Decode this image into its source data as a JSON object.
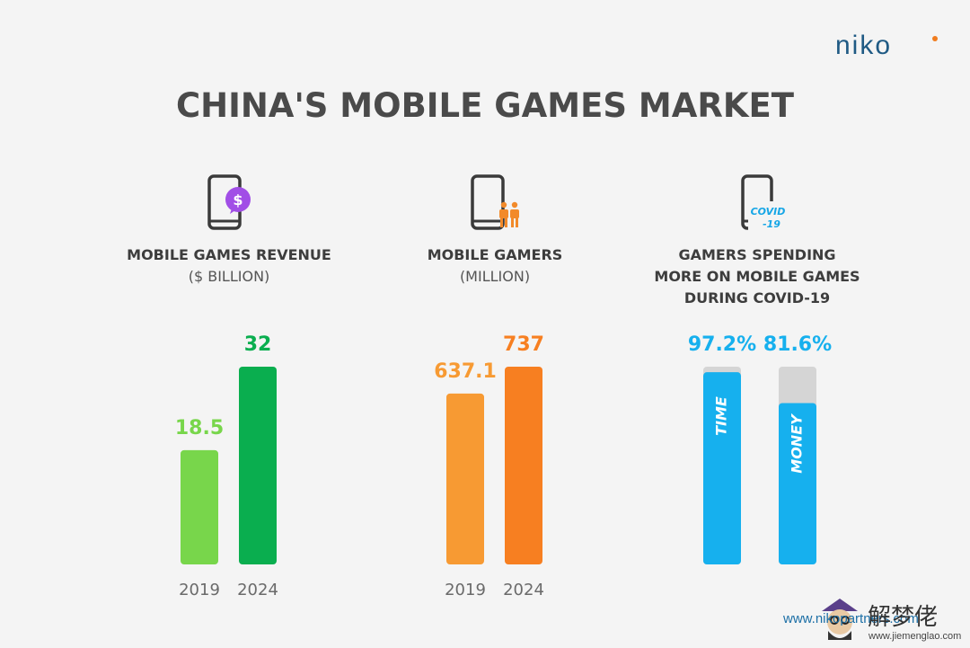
{
  "brand": {
    "logo": "niko",
    "logo_dot_color": "#f07c1f"
  },
  "title": "CHINA'S MOBILE GAMES MARKET",
  "panels": [
    {
      "heading": [
        "MOBILE GAMES REVENUE"
      ],
      "subheading": "($ BILLION)",
      "icon": "phone-dollar-icon"
    },
    {
      "heading": [
        "MOBILE GAMERS"
      ],
      "subheading": "(MILLION)",
      "icon": "phone-people-icon"
    },
    {
      "heading": [
        "GAMERS SPENDING",
        "MORE ON MOBILE GAMES",
        "DURING COVID-19"
      ],
      "subheading": "",
      "icon": "phone-covid-icon",
      "icon_text": [
        "COVID",
        "-19"
      ]
    }
  ],
  "chart_data": [
    {
      "type": "bar",
      "categories": [
        "2019",
        "2024"
      ],
      "values": [
        18.5,
        32
      ],
      "value_labels": [
        "18.5",
        "32"
      ],
      "colors": [
        "#78d64b",
        "#0aae4f"
      ],
      "label_colors": [
        "#78d64b",
        "#0aae4f"
      ],
      "ylim": [
        0,
        32
      ]
    },
    {
      "type": "bar",
      "categories": [
        "2019",
        "2024"
      ],
      "values": [
        637.1,
        737
      ],
      "value_labels": [
        "637.1",
        "737"
      ],
      "colors": [
        "#f79a33",
        "#f77f21"
      ],
      "label_colors": [
        "#f79a33",
        "#f77f21"
      ],
      "ylim": [
        0,
        737
      ]
    },
    {
      "type": "bar",
      "categories": [
        "TIME",
        "MONEY"
      ],
      "values": [
        97.2,
        81.6
      ],
      "value_labels": [
        "97.2%",
        "81.6%"
      ],
      "colors": [
        "#16b0ee",
        "#16b0ee"
      ],
      "label_colors": [
        "#16b0ee",
        "#16b0ee"
      ],
      "track_color": "#d5d5d5",
      "ylim": [
        0,
        100
      ]
    }
  ],
  "footer": {
    "url": "www.nikopartners.com",
    "watermark_cn": "解梦佬",
    "watermark_url": "www.jiemenglao.com"
  }
}
